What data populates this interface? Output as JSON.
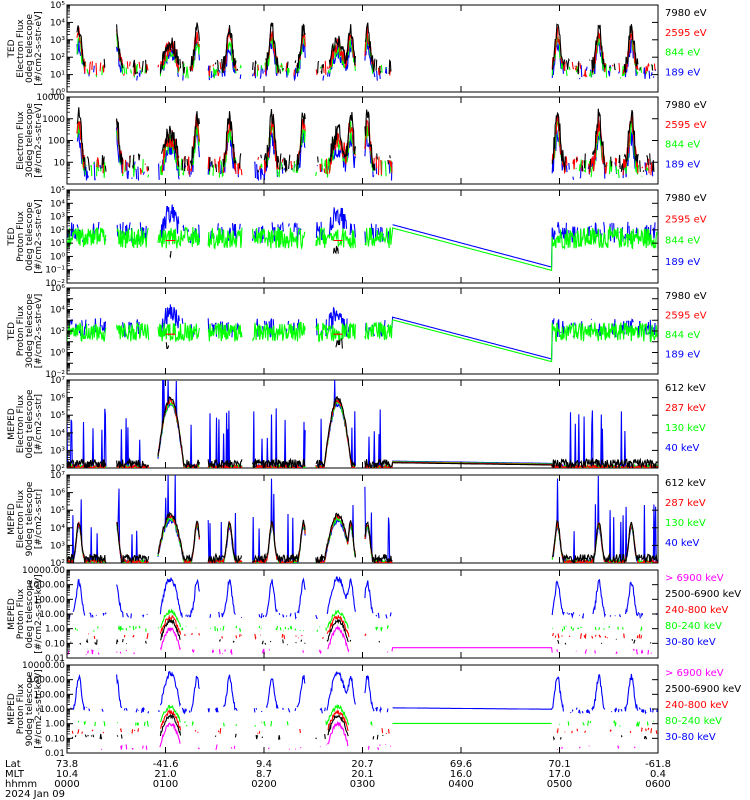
{
  "chart_data": [
    {
      "type": "line",
      "ylabel": [
        "TED",
        "Electron Flux",
        "0deg telescope",
        "[#/cm2-s-str-eV]"
      ],
      "log": true,
      "ylim_exp": [
        0,
        5
      ],
      "yticks": [
        "10⁰",
        "10¹",
        "10²",
        "10³",
        "10⁴",
        "10⁵"
      ],
      "series": [
        {
          "name": "7980 eV",
          "color": "#000000"
        },
        {
          "name": "2595 eV",
          "color": "#ff0000"
        },
        {
          "name": "844 eV",
          "color": "#00ff00"
        },
        {
          "name": "189 eV",
          "color": "#0000ff"
        }
      ]
    },
    {
      "type": "line",
      "ylabel": [
        "Electron Flux",
        "30deg telescope",
        "[#/cm2-s-str-eV]"
      ],
      "log": true,
      "ylim_exp": [
        0,
        4
      ],
      "yticks": [
        "",
        "10",
        "100",
        "1000",
        "10000"
      ],
      "series": [
        {
          "name": "7980 eV",
          "color": "#000000"
        },
        {
          "name": "2595 eV",
          "color": "#ff0000"
        },
        {
          "name": "844 eV",
          "color": "#00ff00"
        },
        {
          "name": "189 eV",
          "color": "#0000ff"
        }
      ]
    },
    {
      "type": "line",
      "ylabel": [
        "TED",
        "Proton Flux",
        "0deg telescope",
        "[#/cm2-s-str-eV]"
      ],
      "log": true,
      "ylim_exp": [
        -2,
        5
      ],
      "yticks": [
        "10⁻²",
        "10⁻¹",
        "10⁰",
        "10¹",
        "10²",
        "10³",
        "10⁴",
        "10⁵"
      ],
      "series": [
        {
          "name": "7980 eV",
          "color": "#000000"
        },
        {
          "name": "2595 eV",
          "color": "#ff0000"
        },
        {
          "name": "844 eV",
          "color": "#00ff00"
        },
        {
          "name": "189 eV",
          "color": "#0000ff"
        }
      ]
    },
    {
      "type": "line",
      "ylabel": [
        "TED",
        "Proton Flux",
        "30deg telescope",
        "[#/cm2-s-str-eV]"
      ],
      "log": true,
      "ylim_exp": [
        -2,
        6
      ],
      "yticks": [
        "10⁻²",
        "",
        "10⁰",
        "",
        "10²",
        "",
        "10⁴",
        "",
        "10⁶"
      ],
      "series": [
        {
          "name": "7980 eV",
          "color": "#000000"
        },
        {
          "name": "2595 eV",
          "color": "#ff0000"
        },
        {
          "name": "844 eV",
          "color": "#00ff00"
        },
        {
          "name": "189 eV",
          "color": "#0000ff"
        }
      ]
    },
    {
      "type": "line",
      "ylabel": [
        "MEPED",
        "Electron Flux",
        "0deg telescope",
        "[#/cm2-s-str]"
      ],
      "log": true,
      "ylim_exp": [
        2,
        7
      ],
      "yticks": [
        "10²",
        "10³",
        "10⁴",
        "10⁵",
        "10⁶",
        "10⁷"
      ],
      "series": [
        {
          "name": "612 keV",
          "color": "#000000"
        },
        {
          "name": "287 keV",
          "color": "#ff0000"
        },
        {
          "name": "130 keV",
          "color": "#00ff00"
        },
        {
          "name": "40 keV",
          "color": "#0000ff"
        }
      ]
    },
    {
      "type": "line",
      "ylabel": [
        "MEPED",
        "Electron Flux",
        "90deg telescope",
        "[#/cm2-s-str]"
      ],
      "log": true,
      "ylim_exp": [
        2,
        7
      ],
      "yticks": [
        "10²",
        "10³",
        "10⁴",
        "10⁵",
        "10⁶",
        "10⁷"
      ],
      "series": [
        {
          "name": "612 keV",
          "color": "#000000"
        },
        {
          "name": "287 keV",
          "color": "#ff0000"
        },
        {
          "name": "130 keV",
          "color": "#00ff00"
        },
        {
          "name": "40 keV",
          "color": "#0000ff"
        }
      ]
    },
    {
      "type": "line",
      "ylabel": [
        "MEPED",
        "Proton Flux",
        "0deg telescope",
        "[#/cm2-s-str-keV]"
      ],
      "log": true,
      "ylim_exp": [
        -2,
        4
      ],
      "yticks": [
        "0.01",
        "0.10",
        "1.00",
        "10.00",
        "100.00",
        "1000.00",
        "10000.00"
      ],
      "series": [
        {
          "name": "> 6900 keV",
          "color": "#ff00ff"
        },
        {
          "name": "2500-6900 keV",
          "color": "#000000"
        },
        {
          "name": "240-800 keV",
          "color": "#ff0000"
        },
        {
          "name": "80-240 keV",
          "color": "#00ff00"
        },
        {
          "name": "30-80 keV",
          "color": "#0000ff"
        }
      ]
    },
    {
      "type": "line",
      "ylabel": [
        "MEPED",
        "Proton Flux",
        "90deg telescope",
        "[#/cm2-s-str-keV]"
      ],
      "log": true,
      "ylim_exp": [
        -2,
        4
      ],
      "yticks": [
        "0.01",
        "0.10",
        "1.00",
        "10.00",
        "100.00",
        "1000.00",
        "10000.00"
      ],
      "series": [
        {
          "name": "> 6900 keV",
          "color": "#ff00ff"
        },
        {
          "name": "2500-6900 keV",
          "color": "#000000"
        },
        {
          "name": "240-800 keV",
          "color": "#ff0000"
        },
        {
          "name": "80-240 keV",
          "color": "#00ff00"
        },
        {
          "name": "30-80 keV",
          "color": "#0000ff"
        }
      ]
    }
  ],
  "x_axis": {
    "row_labels": [
      "Lat",
      "MLT",
      "hhmm",
      "2024 Jan 09"
    ],
    "hours": [
      0,
      1,
      2,
      3,
      4,
      5,
      6
    ],
    "lat": [
      "73.8",
      "-41.6",
      "9.4",
      "20.7",
      "69.6",
      "70.1",
      "-61.8"
    ],
    "mlt": [
      "10.4",
      "21.0",
      "8.7",
      "20.1",
      "16.0",
      "17.0",
      "0.4"
    ],
    "hhmm": [
      "0000",
      "0100",
      "0200",
      "0300",
      "0400",
      "0500",
      "0600"
    ]
  }
}
